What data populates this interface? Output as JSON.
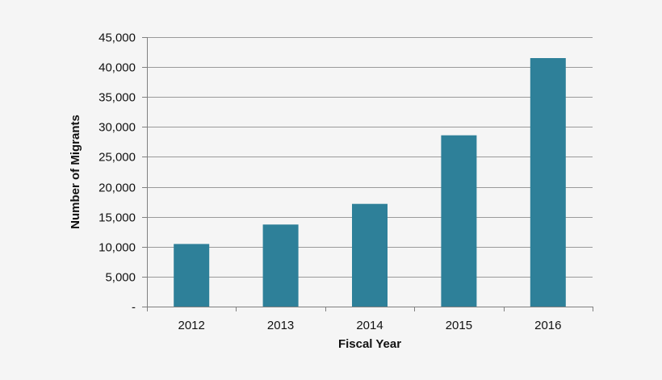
{
  "chart_data": {
    "type": "bar",
    "title": "",
    "xlabel": "Fiscal Year",
    "ylabel": "Number of Migrants",
    "categories": [
      "2012",
      "2013",
      "2014",
      "2015",
      "2016"
    ],
    "series": [
      {
        "values": [
          10450,
          13700,
          17150,
          28600,
          41500
        ],
        "color": "#2e8099"
      }
    ],
    "ylim": [
      0,
      45000
    ],
    "yticks": [
      0,
      5000,
      10000,
      15000,
      20000,
      25000,
      30000,
      35000,
      40000,
      45000
    ],
    "ytick_labels": [
      "-",
      "5,000",
      "10,000",
      "15,000",
      "20,000",
      "25,000",
      "30,000",
      "35,000",
      "40,000",
      "45,000"
    ],
    "grid": true,
    "legend": "none",
    "colors": {
      "bar": "#2e8099",
      "grid": "#9a9a9a",
      "axis": "#808080",
      "background": "#f5f5f5"
    }
  }
}
